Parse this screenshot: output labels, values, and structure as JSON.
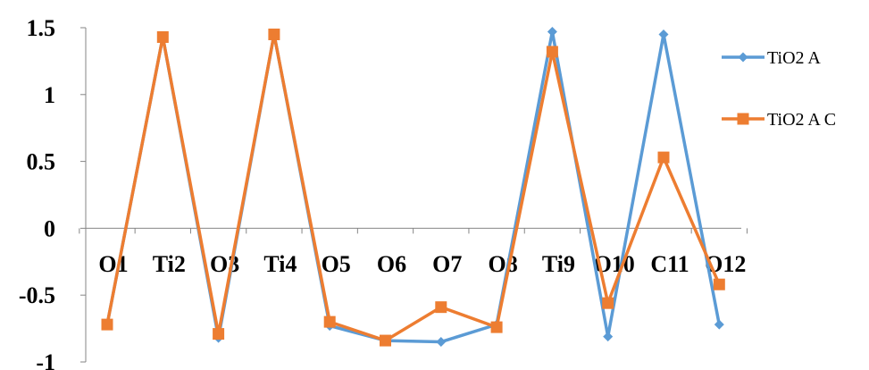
{
  "chart_data": {
    "type": "line",
    "categories": [
      "O1",
      "Ti2",
      "O3",
      "Ti4",
      "O5",
      "O6",
      "O7",
      "O8",
      "Ti9",
      "O10",
      "C11",
      "O12"
    ],
    "series": [
      {
        "name": "TiO2 A",
        "color": "#5B9BD5",
        "marker": "diamond",
        "values": [
          -0.72,
          1.43,
          -0.82,
          1.45,
          -0.73,
          -0.84,
          -0.85,
          -0.72,
          1.47,
          -0.81,
          1.45,
          -0.72
        ]
      },
      {
        "name": "TiO2 A C",
        "color": "#ED7D31",
        "marker": "square",
        "values": [
          -0.72,
          1.43,
          -0.79,
          1.45,
          -0.7,
          -0.84,
          -0.59,
          -0.74,
          1.32,
          -0.56,
          0.53,
          -0.42
        ]
      }
    ],
    "yticks": [
      "1.5",
      "1",
      "0.5",
      "0",
      "-0.5",
      "-1"
    ],
    "ylim": [
      -1,
      1.5
    ],
    "grid": false,
    "legend": "right",
    "title": "",
    "xlabel": "",
    "ylabel": ""
  }
}
